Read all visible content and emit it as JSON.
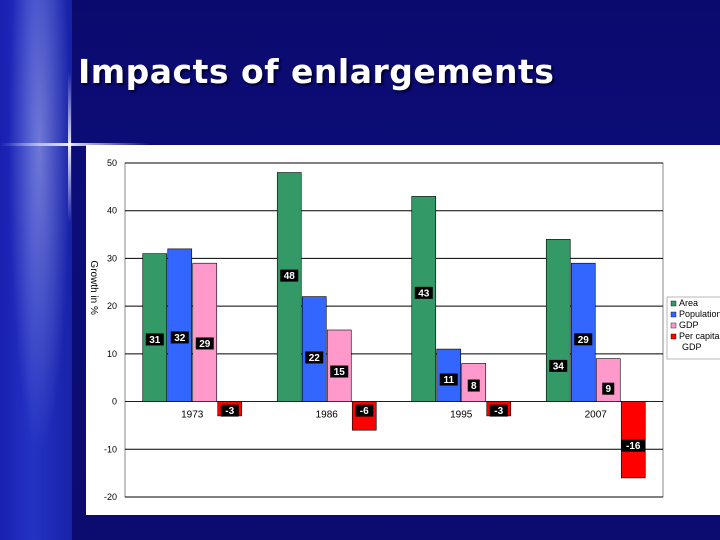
{
  "slide": {
    "title": "Impacts of enlargements"
  },
  "colors": {
    "area": "#339966",
    "population": "#3366ff",
    "gdp": "#ff99cc",
    "per_capita_gdp": "#ff0000",
    "background": "#0a0a6e"
  },
  "chart_data": {
    "type": "bar",
    "title": "",
    "xlabel": "",
    "ylabel": "Growth in %",
    "ylim": [
      -20,
      50
    ],
    "yticks": [
      -20,
      -10,
      0,
      10,
      20,
      30,
      40,
      50
    ],
    "categories": [
      "1973",
      "1986",
      "1995",
      "2007"
    ],
    "series": [
      {
        "name": "Area",
        "key": "area",
        "values": [
          31,
          48,
          43,
          34
        ]
      },
      {
        "name": "Population",
        "key": "population",
        "values": [
          32,
          22,
          11,
          29
        ]
      },
      {
        "name": "GDP",
        "key": "gdp",
        "values": [
          29,
          15,
          8,
          9
        ]
      },
      {
        "name": "Per capita GDP",
        "key": "per_capita_gdp",
        "values": [
          -3,
          -6,
          -3,
          -16
        ]
      }
    ],
    "legend": {
      "position": "right",
      "entries": [
        "Area",
        "Population",
        "GDP",
        "Per capita GDP"
      ]
    }
  }
}
